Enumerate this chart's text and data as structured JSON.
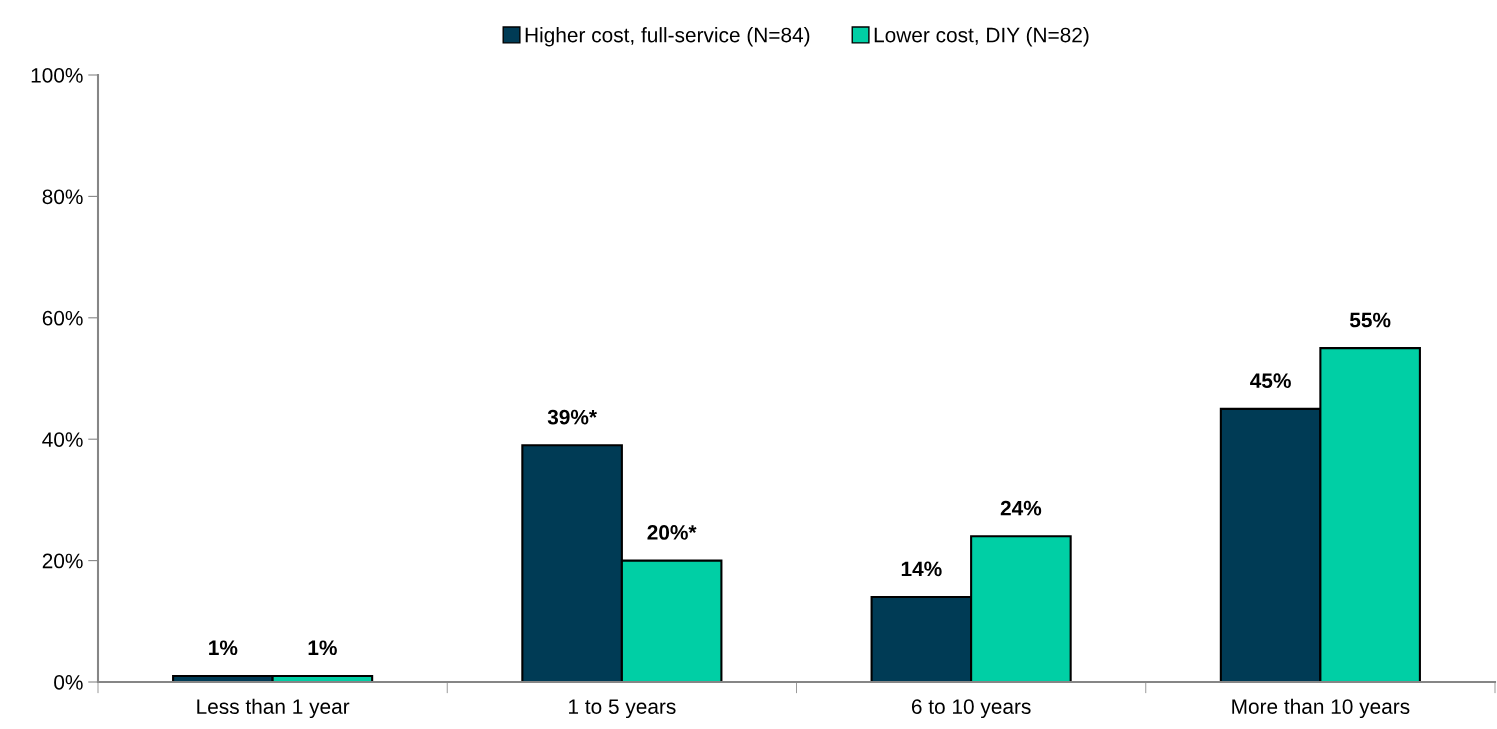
{
  "chart_data": {
    "type": "bar",
    "categories": [
      "Less than 1 year",
      "1 to 5 years",
      "6 to 10 years",
      "More than 10 years"
    ],
    "series": [
      {
        "name": "Higher cost, full-service (N=84)",
        "color": "#003b55",
        "values": [
          1,
          39,
          14,
          45
        ],
        "value_labels": [
          "1%",
          "39%*",
          "14%",
          "45%"
        ]
      },
      {
        "name": "Lower cost, DIY (N=82)",
        "color": "#00cfa5",
        "values": [
          1,
          20,
          24,
          55
        ],
        "value_labels": [
          "1%",
          "20%*",
          "24%",
          "55%"
        ]
      }
    ],
    "ylim": [
      0,
      100
    ],
    "yticks": [
      {
        "value": 0,
        "label": "0%"
      },
      {
        "value": 20,
        "label": "20%"
      },
      {
        "value": 40,
        "label": "40%"
      },
      {
        "value": 60,
        "label": "60%"
      },
      {
        "value": 80,
        "label": "80%"
      },
      {
        "value": 100,
        "label": "100%"
      }
    ],
    "grid": false,
    "legend": "top"
  }
}
